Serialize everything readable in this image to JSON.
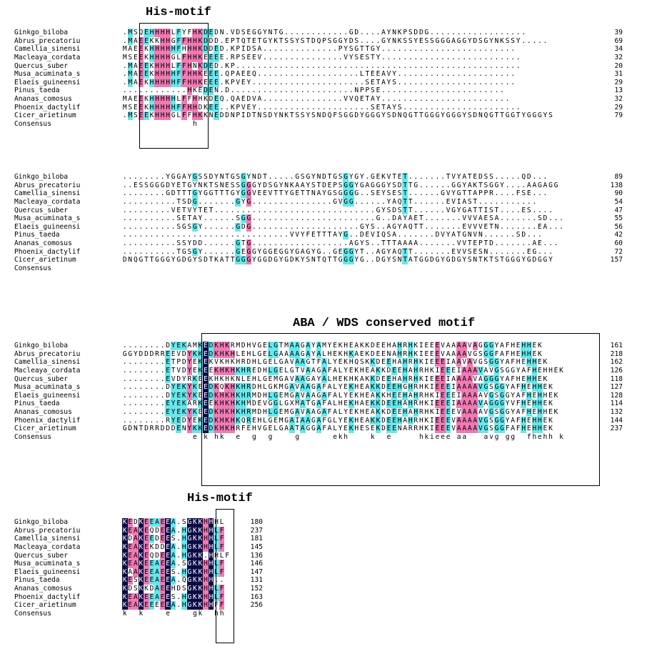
{
  "titles": {
    "his_motif_top": "His-motif",
    "aba_wds": "ABA / WDS conserved motif",
    "his_motif_bottom": "His-motif"
  },
  "consensus_label": "Consensus",
  "color_legend": {
    "k": "#0a0a46",
    "p": "#f07ab4",
    "c": "#66e8ec"
  },
  "blocks": [
    {
      "rows": [
        {
          "name": "Ginkgo_biloba",
          "seq": ".MSQEHHHHLFYFHKDEDN.VDSEGGYNTG............GD....AYNKPSDDG..................",
          "end": "39"
        },
        {
          "name": "Abrus_precatoriu",
          "seq": ".MAEEKKHHGFFHHKDDD.EPTQTETGYKTSSYSTDQPSGGYDS....GYNKSSYESSGGGAGGYDSGYNKSSY.....",
          "end": "69"
        },
        {
          "name": "Camellia_sinensi",
          "seq": "MAEEKHHHHHFHHHKDDED.KPIDSA..............PYSGTTGY.........................",
          "end": "34"
        },
        {
          "name": "Macleaya_cordata",
          "seq": "MSEEKHHHHGLFHHKEEEE.RPSEEV...............VYSESTY..........................",
          "end": "32"
        },
        {
          "name": "Quercus_suber",
          "seq": ".MAEEKHHHLFFHNKDED.KP.....................................................",
          "end": "20"
        },
        {
          "name": "Musa_acuminata_s",
          "seq": ".MAEEKHHHHFFHHKEEE.QPAEEQ...................LTEEAVY......................",
          "end": "31"
        },
        {
          "name": "Elaeis_guineensi",
          "seq": ".MAEKHHHHHFFHHKEEE.KPVEY.....................SETAYS......................",
          "end": "29"
        },
        {
          "name": "Pinus_taeda",
          "seq": "............HKEDEN.D.......................NPPSE.......................",
          "end": "13"
        },
        {
          "name": "Ananas_comosus",
          "seq": "MAEEKHHHHHLFFHHKDEQ.QAEDVA...............VVQETAY........................",
          "end": "32"
        },
        {
          "name": "Phoenix_dactylif",
          "seq": "MSEEKHHHHHFFHHDKEE..KPVEY.....................SETAYS......................",
          "end": "29"
        },
        {
          "name": "Cicer_arietinum",
          "seq": ".MSEEKHHHGLFFHKKNEDDNPIDTNSDYNKTSSYSNDQFSGGDYGGGYSDNQGTTGGGYGGGYSDNQGTTGGTYGGGYS",
          "end": "79"
        },
        {
          "name": "Consensus",
          "seq": "             h",
          "end": ""
        }
      ]
    },
    {
      "rows": [
        {
          "name": "Ginkgo_biloba",
          "seq": "........YGGAYGSSDYNTGSGYNDT.....GSGYNDTGSGYGY.GEKVTET.......TVYATEDSS.....QD...",
          "end": "89"
        },
        {
          "name": "Abrus_precatoriu",
          "seq": "..ESSGGGDYETGYNKTSNESSGGGYDSGYNKAAYSTDEPSGGYGAGGGYSDTTG......GGYAKTSGGY....AAGAGG",
          "end": "138"
        },
        {
          "name": "Camellia_sinensi",
          "seq": "........GDTTTGYGGTTTGYGGVEEVTTYGETTNAYGSGGGG..SEYSEST......GVYGTTAPPR....FSE...",
          "end": "90"
        },
        {
          "name": "Macleaya_cordata",
          "seq": "..........TSDG.......GYG...............GVGG......YAQTT......EVIAST...........",
          "end": "54"
        },
        {
          "name": "Quercus_suber",
          "seq": ".........VETVYTET..............................GYSDSTT......VGYGATTIST....ES....",
          "end": "47"
        },
        {
          "name": "Musa_acuminata_s",
          "seq": "..........SETAY......SGG.......................G..DAYAET.......VVVAESA.......SD...",
          "end": "55"
        },
        {
          "name": "Elaeis_guineensi",
          "seq": "..........SGSGY......GDG....................GYS..AGYAQTT.......EVVVETN.......EA...",
          "end": "56"
        },
        {
          "name": "Pinus_taeda",
          "seq": "...............................VVYFETTTAYG..DEVIQSA.......DVYATGNVN......SD...",
          "end": "42"
        },
        {
          "name": "Ananas_comosus",
          "seq": "..........SSYDD......GTG..................AGYS..TTTAAAA.......VVTEPTD.......AE...",
          "end": "60"
        },
        {
          "name": "Phoenix_dactylif",
          "seq": "..........TGSGY......GEGGYGGEGGYGAGYG..GEGGYT..AGYAQTT.......EVVSESN.......EG...",
          "end": "72"
        },
        {
          "name": "Cicer_arietinum",
          "seq": "DNQGTTGGGYGDGYSDTKATTGGGYGGDGYGDKYSNTQTTGGGYG..DGYSNTATGGDGYGDGYSNTKTSTGGGYGDGGY",
          "end": "157"
        },
        {
          "name": "Consensus",
          "seq": "",
          "end": ""
        }
      ]
    },
    {
      "rows": [
        {
          "name": "Ginkgo_biloba",
          "seq": "........DYEKAMKEDKHKRMDHVGELGTMAAGAYAMYEKHEAKKDEEHAHRHKIEEEVAAAAVAGGGYAFHEHHEK",
          "end": "161"
        },
        {
          "name": "Abrus_precatoriu",
          "seq": "GGYDDDRREEVDYKKEDKHKHLEHLGELGAAAAGAYALHEKHKAEKDEENAHRHKIEEEVAAAAVGSGGFAFHEHHEK",
          "end": "218"
        },
        {
          "name": "Camellia_sinensi",
          "seq": "........ETPDYEKEKVKHKHRDHLGELGAVAAGTFALYEKHQSKKDEEHAHRHKIEEEIAAVAVGSGGYAFHEHHEK",
          "end": "162"
        },
        {
          "name": "Macleaya_cordata",
          "seq": "........ETVDYEKEEKHKHKHREDHLGELGTVAAGAFALYEKHEAKKDEEHAHRHKIEEEIAAAVAVGSGGYAFHEHHEK",
          "end": "126"
        },
        {
          "name": "Quercus_suber",
          "seq": "........EVDYRKEEKHKHKNLEHLGEMGAVAAGAYALHEKHKAKKDEEHAHRHKIEEEIAAAAVAGGGYAFHEHHEK",
          "end": "118"
        },
        {
          "name": "Musa_acuminata_s",
          "seq": "........DYEKYKEEDKQKHKHRDHLGKMGAVAAGAFALYEKHEAKKDEEHGHRHKIEEEIAAAAVGSGGYAFHEHHEK",
          "end": "127"
        },
        {
          "name": "Elaeis_guineensi",
          "seq": "........DYEKYKEEDKHKHKHRMDHLGEMGAVAAGAFALYEKHEAKKHEEHAHRHKIEEEIAAAAVGSGGYAFHEHHEK",
          "end": "128"
        },
        {
          "name": "Pinus_taeda",
          "seq": "........EYEKARKEEKHKHKHMDEVGGLGXMATGAFALHEKHAEKKDEEHAHRHKIEEEIAAAAVAGGGYVFHEHHEK",
          "end": "114"
        },
        {
          "name": "Ananas_comosus",
          "seq": "........EYEKYKEEDKHKHKHRMDHLGEMGAVAAGAFALYEKHEAKKDEEHAHRHKIEEEVAAAAVGSGGYAFHEHHEK",
          "end": "132"
        },
        {
          "name": "Phoenix_dactylif",
          "seq": "........RYEDYEKEDKHKHKQREHLGEMGAIAAGAFGLYEKHEAKKDEEHAHRHKIEEEVAAAAVGSGGYAFHEHHEK",
          "end": "144"
        },
        {
          "name": "Cicer_arietinum",
          "seq": "GDNTDRRDDDENYKKEDKHKHRFEHVGELGAATAGGAFALYEKHESEKDEENARRHKIEEEVAAAAVGSGGFAFHEHHEK",
          "end": "237"
        },
        {
          "name": "Consensus",
          "seq": "             e k hk  e  g  g    g      ekh    k  e     hkieee aa   avg gg  fhehh k",
          "end": ""
        }
      ]
    },
    {
      "rows": [
        {
          "name": "Ginkgo_biloba",
          "seq": "KEDKEEAEEA.SGKKHHHL",
          "end": "180"
        },
        {
          "name": "Abrus_precatoriu",
          "seq": "KEAKEQDEEA.HGKKHHLF",
          "end": "237"
        },
        {
          "name": "Camellia_sinensi",
          "seq": "KDAKEEDEES.HGKKHHLF",
          "end": "181"
        },
        {
          "name": "Macleaya_cordata",
          "seq": "KEAKEKDDEA.HGKKHHLF",
          "end": "145"
        },
        {
          "name": "Quercus_suber",
          "seq": "KEAKEQDEEA.HGKK.HHLF",
          "end": "136"
        },
        {
          "name": "Musa_acuminata_s",
          "seq": "KEAKEEAEEA.SGKKHHLF",
          "end": "146"
        },
        {
          "name": "Elaeis_guineensi",
          "seq": "KAAKEEAEES.HGKKHHLF",
          "end": "147"
        },
        {
          "name": "Pinus_taeda",
          "seq": "KESKEEAEEA.QGKKHH..",
          "end": "131"
        },
        {
          "name": "Ananas_comosus",
          "seq": "KDSKKDAEEHDSGKKHHLF",
          "end": "152"
        },
        {
          "name": "Phoenix_dactylif",
          "seq": "KEAKEEAEES.HGKKHHLF",
          "end": "163"
        },
        {
          "name": "Cicer_arietinum",
          "seq": "KEAKEEEEEA.HGKKHHFF",
          "end": "256"
        },
        {
          "name": "Consensus",
          "seq": "k  k    e    gk  hh",
          "end": ""
        }
      ]
    }
  ]
}
